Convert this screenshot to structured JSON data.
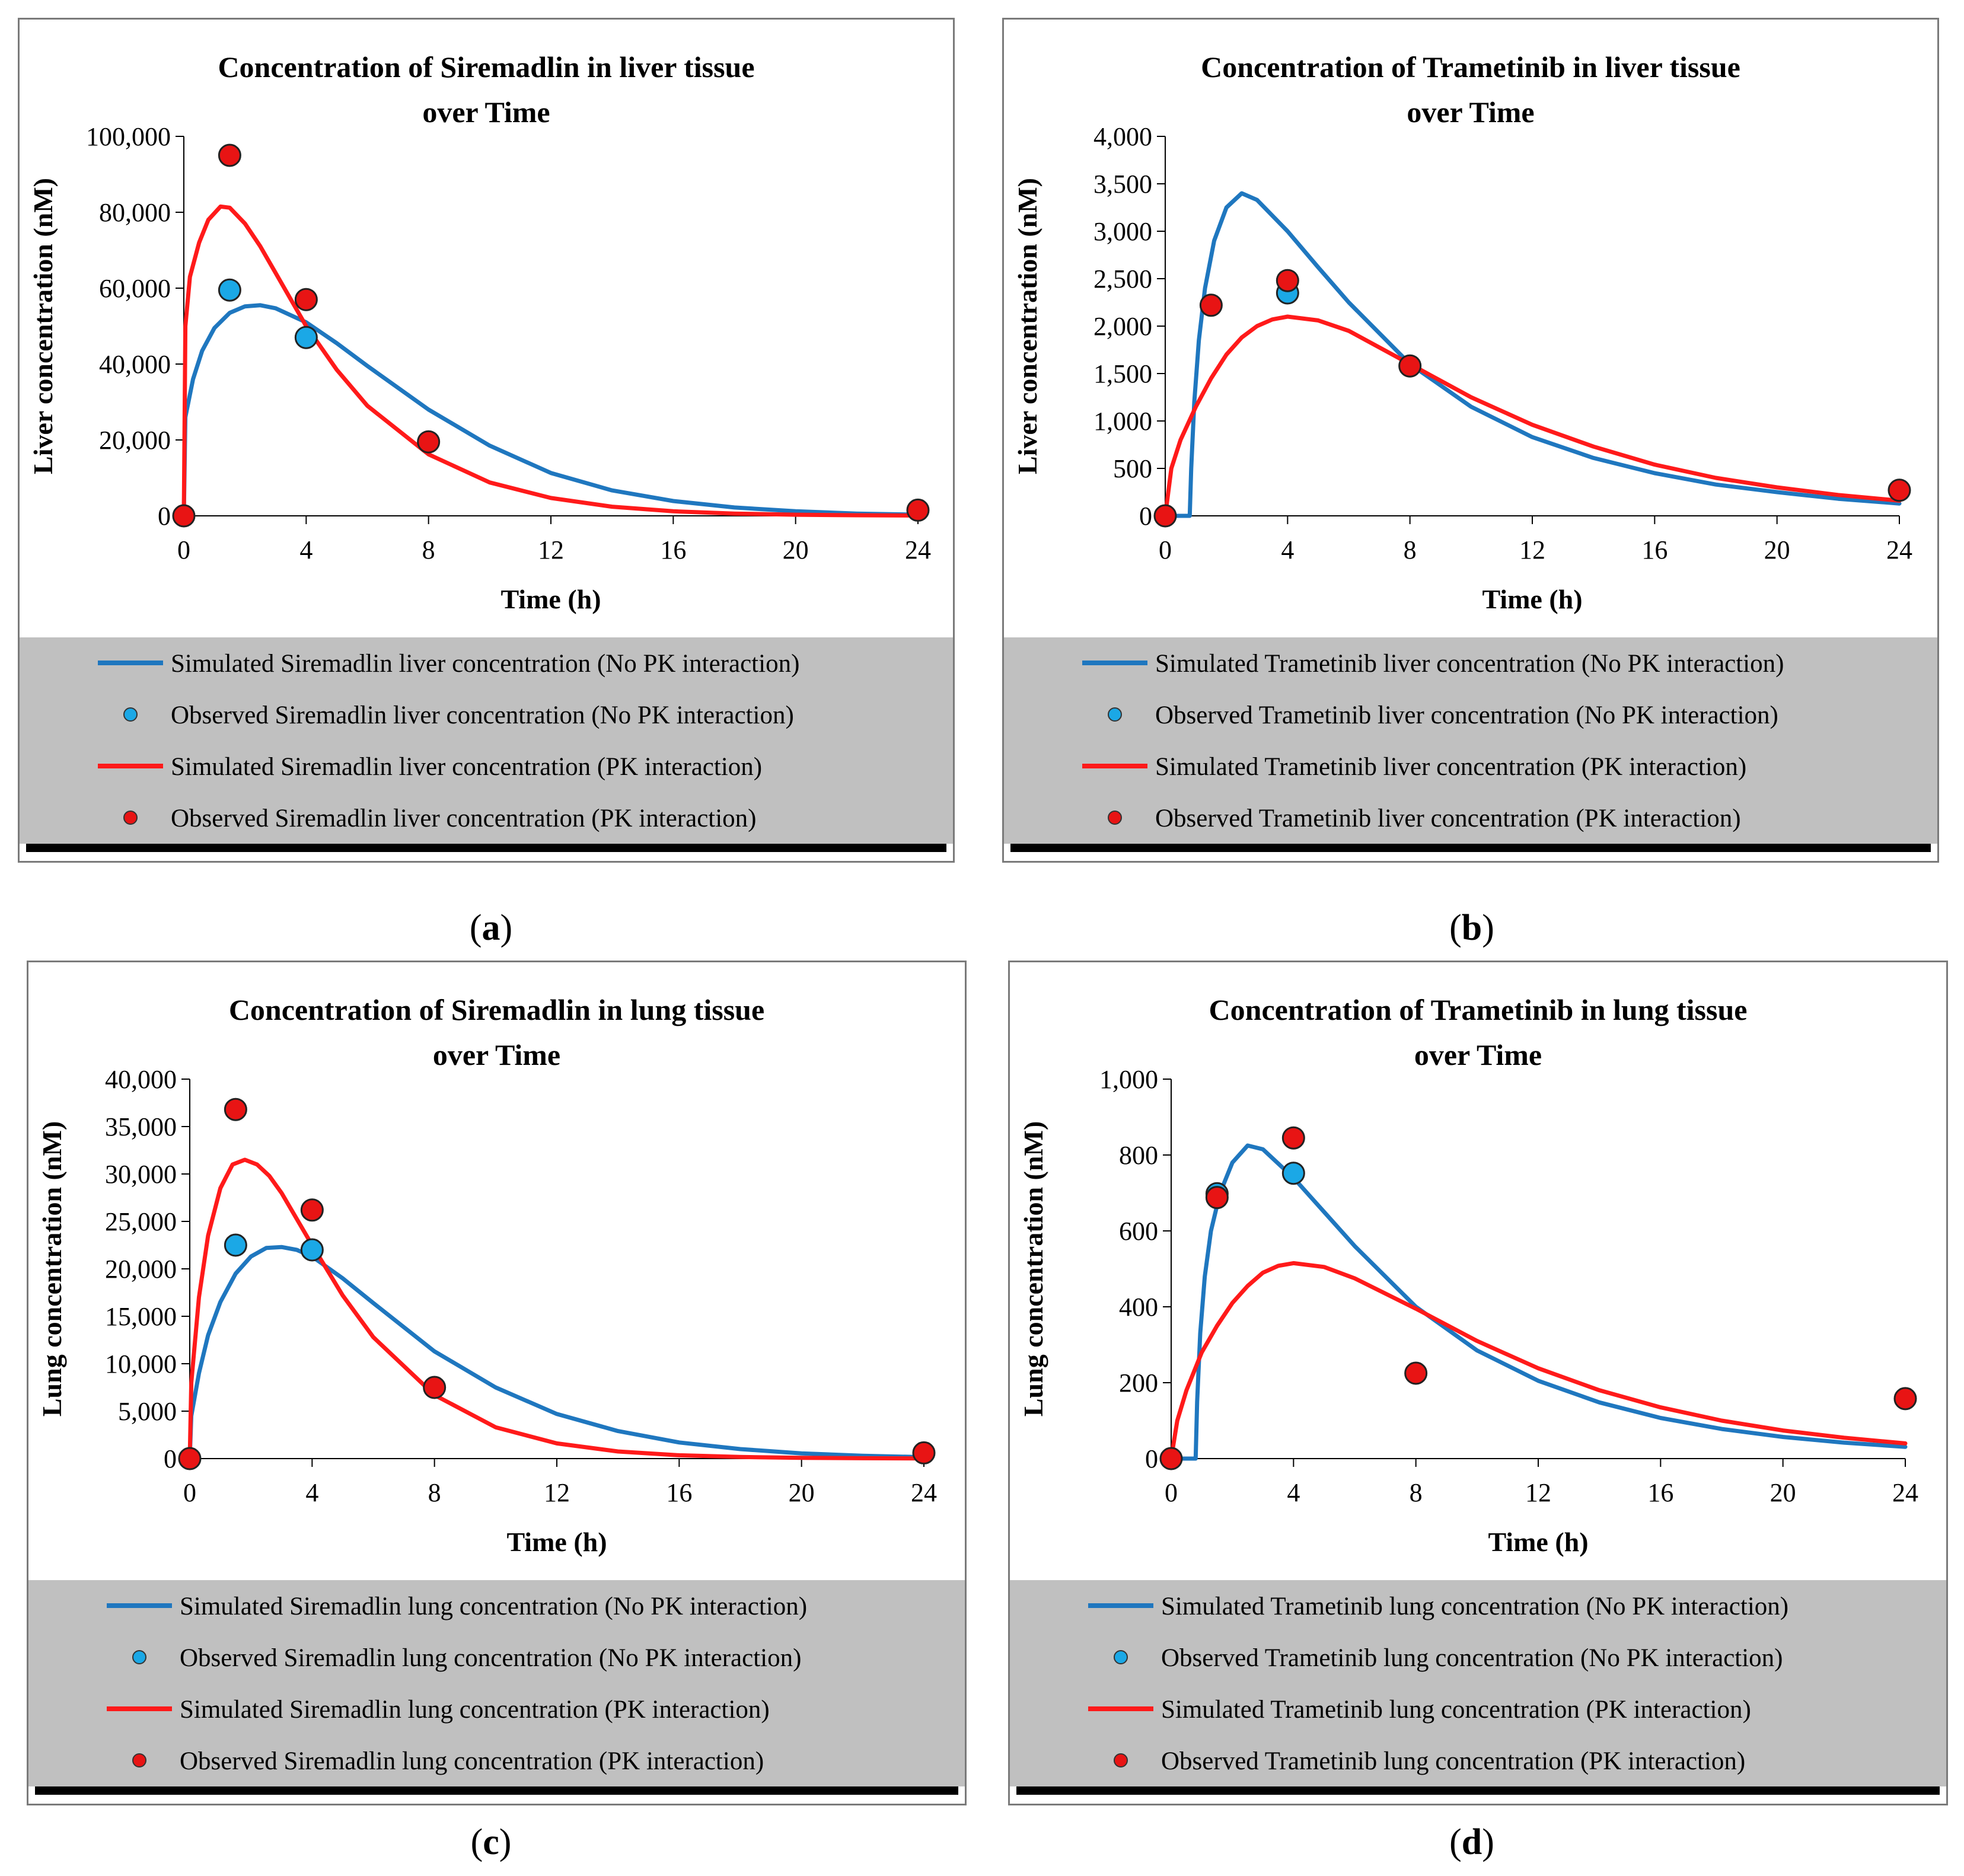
{
  "colors": {
    "no_pk": "#1f77bf",
    "pk": "#ff1a1a",
    "observed_no_pk_fill": "#1ba8e6",
    "observed_pk_fill": "#e81414",
    "legend_bg": "#c0c0c0"
  },
  "chart_data": [
    {
      "id": "a",
      "type": "line",
      "caption_letter": "a",
      "title_line1": "Concentration of Siremadlin in liver tissue",
      "title_line2": "over Time",
      "xlabel": "Time (h)",
      "ylabel": "Liver concentration (nM)",
      "xlim": [
        0,
        24
      ],
      "ylim": [
        0,
        100000
      ],
      "x_ticks": [
        0,
        4,
        8,
        12,
        16,
        20,
        24
      ],
      "x_tick_labels": [
        "0",
        "4",
        "8",
        "12",
        "16",
        "20",
        "24"
      ],
      "y_ticks": [
        0,
        20000,
        40000,
        60000,
        80000,
        100000
      ],
      "y_tick_labels": [
        "0",
        "20,000",
        "40,000",
        "60,000",
        "80,000",
        "100,000"
      ],
      "series": [
        {
          "name": "Simulated Siremadlin liver concentration (No PK interaction)",
          "kind": "line",
          "color": "#1f77bf",
          "x": [
            0,
            0.05,
            0.3,
            0.6,
            1,
            1.5,
            2,
            2.5,
            3,
            4,
            5,
            6,
            8,
            10,
            12,
            14,
            16,
            18,
            20,
            22,
            24
          ],
          "y": [
            0,
            26000,
            36000,
            43500,
            49500,
            53500,
            55200,
            55500,
            54700,
            51000,
            45500,
            39500,
            28000,
            18500,
            11300,
            6700,
            3900,
            2200,
            1200,
            600,
            300
          ]
        },
        {
          "name": "Observed Siremadlin liver concentration (No PK interaction)",
          "kind": "scatter",
          "color": "#1ba8e6",
          "x": [
            1.5,
            4
          ],
          "y": [
            59500,
            47000
          ]
        },
        {
          "name": "Simulated Siremadlin liver concentration (PK interaction)",
          "kind": "line",
          "color": "#ff1a1a",
          "x": [
            0,
            0.05,
            0.2,
            0.5,
            0.8,
            1.2,
            1.5,
            2,
            2.5,
            3,
            4,
            5,
            6,
            8,
            10,
            12,
            14,
            16,
            18,
            20,
            22,
            24
          ],
          "y": [
            0,
            50000,
            63000,
            72000,
            78000,
            81500,
            81200,
            77000,
            71000,
            64000,
            50000,
            38500,
            29000,
            16200,
            8800,
            4700,
            2400,
            1200,
            600,
            300,
            150,
            80
          ]
        },
        {
          "name": "Observed Siremadlin liver concentration (PK interaction)",
          "kind": "scatter",
          "color": "#e81414",
          "x": [
            0,
            1.5,
            4,
            8,
            24
          ],
          "y": [
            0,
            95000,
            57000,
            19500,
            1500
          ]
        }
      ]
    },
    {
      "id": "b",
      "type": "line",
      "caption_letter": "b",
      "title_line1": "Concentration of Trametinib in liver tissue",
      "title_line2": "over Time",
      "xlabel": "Time (h)",
      "ylabel": "Liver concentration (nM)",
      "xlim": [
        0,
        24
      ],
      "ylim": [
        0,
        4000
      ],
      "x_ticks": [
        0,
        4,
        8,
        12,
        16,
        20,
        24
      ],
      "x_tick_labels": [
        "0",
        "4",
        "8",
        "12",
        "16",
        "20",
        "24"
      ],
      "y_ticks": [
        0,
        500,
        1000,
        1500,
        2000,
        2500,
        3000,
        3500,
        4000
      ],
      "y_tick_labels": [
        "0",
        "500",
        "1,000",
        "1,500",
        "2,000",
        "2,500",
        "3,000",
        "3,500",
        "4,000"
      ],
      "series": [
        {
          "name": "Simulated Trametinib liver concentration (No PK interaction)",
          "kind": "line",
          "color": "#1f77bf",
          "x": [
            0,
            0.8,
            0.85,
            0.95,
            1.1,
            1.3,
            1.6,
            2,
            2.5,
            3,
            4,
            5,
            6,
            8,
            10,
            12,
            14,
            16,
            18,
            20,
            22,
            24
          ],
          "y": [
            0,
            0,
            500,
            1200,
            1850,
            2400,
            2900,
            3250,
            3400,
            3330,
            3000,
            2620,
            2250,
            1600,
            1150,
            830,
            610,
            450,
            330,
            250,
            180,
            130
          ]
        },
        {
          "name": "Observed Trametinib liver concentration (No PK interaction)",
          "kind": "scatter",
          "color": "#1ba8e6",
          "x": [
            4
          ],
          "y": [
            2350
          ]
        },
        {
          "name": "Simulated Trametinib liver concentration (PK interaction)",
          "kind": "line",
          "color": "#ff1a1a",
          "x": [
            0,
            0.2,
            0.5,
            1,
            1.5,
            2,
            2.5,
            3,
            3.5,
            4,
            5,
            6,
            8,
            10,
            12,
            14,
            16,
            18,
            20,
            22,
            24
          ],
          "y": [
            0,
            500,
            800,
            1150,
            1450,
            1700,
            1880,
            2000,
            2070,
            2100,
            2060,
            1950,
            1600,
            1250,
            960,
            730,
            540,
            400,
            300,
            220,
            160
          ]
        },
        {
          "name": "Observed Trametinib liver concentration (PK interaction)",
          "kind": "scatter",
          "color": "#e81414",
          "x": [
            0,
            1.5,
            4,
            8,
            24
          ],
          "y": [
            0,
            2220,
            2480,
            1580,
            270
          ]
        }
      ]
    },
    {
      "id": "c",
      "type": "line",
      "caption_letter": "c",
      "title_line1": "Concentration of Siremadlin in lung tissue",
      "title_line2": "over Time",
      "xlabel": "Time (h)",
      "ylabel": "Lung concentration (nM)",
      "xlim": [
        0,
        24
      ],
      "ylim": [
        0,
        40000
      ],
      "x_ticks": [
        0,
        4,
        8,
        12,
        16,
        20,
        24
      ],
      "x_tick_labels": [
        "0",
        "4",
        "8",
        "12",
        "16",
        "20",
        "24"
      ],
      "y_ticks": [
        0,
        5000,
        10000,
        15000,
        20000,
        25000,
        30000,
        35000,
        40000
      ],
      "y_tick_labels": [
        "0",
        "5,000",
        "10,000",
        "15,000",
        "20,000",
        "25,000",
        "30,000",
        "35,000",
        "40,000"
      ],
      "series": [
        {
          "name": "Simulated Siremadlin lung concentration (No PK interaction)",
          "kind": "line",
          "color": "#1f77bf",
          "x": [
            0,
            0.05,
            0.3,
            0.6,
            1,
            1.5,
            2,
            2.5,
            3,
            3.5,
            4,
            5,
            6,
            8,
            10,
            12,
            14,
            16,
            18,
            20,
            22,
            24
          ],
          "y": [
            0,
            4500,
            9000,
            13000,
            16500,
            19500,
            21300,
            22200,
            22300,
            22000,
            21300,
            19000,
            16400,
            11300,
            7500,
            4700,
            2900,
            1700,
            1000,
            550,
            300,
            150
          ]
        },
        {
          "name": "Observed Siremadlin lung concentration (No PK interaction)",
          "kind": "scatter",
          "color": "#1ba8e6",
          "x": [
            1.5,
            4
          ],
          "y": [
            22500,
            22000
          ]
        },
        {
          "name": "Simulated Siremadlin lung concentration (PK interaction)",
          "kind": "line",
          "color": "#ff1a1a",
          "x": [
            0,
            0.05,
            0.3,
            0.6,
            1,
            1.4,
            1.8,
            2.2,
            2.6,
            3,
            4,
            5,
            6,
            8,
            10,
            12,
            14,
            16,
            18,
            20,
            22,
            24
          ],
          "y": [
            0,
            8000,
            17000,
            23500,
            28500,
            31000,
            31500,
            31000,
            29800,
            28000,
            22500,
            17200,
            12800,
            6700,
            3300,
            1600,
            750,
            350,
            170,
            80,
            40,
            20
          ]
        },
        {
          "name": "Observed Siremadlin lung concentration (PK interaction)",
          "kind": "scatter",
          "color": "#e81414",
          "x": [
            0,
            1.5,
            4,
            8,
            24
          ],
          "y": [
            0,
            36800,
            26200,
            7500,
            600
          ]
        }
      ]
    },
    {
      "id": "d",
      "type": "line",
      "caption_letter": "d",
      "title_line1": "Concentration of Trametinib in lung tissue",
      "title_line2": "over Time",
      "xlabel": "Time (h)",
      "ylabel": "Lung concentration (nM)",
      "xlim": [
        0,
        24
      ],
      "ylim": [
        0,
        1000
      ],
      "x_ticks": [
        0,
        4,
        8,
        12,
        16,
        20,
        24
      ],
      "x_tick_labels": [
        "0",
        "4",
        "8",
        "12",
        "16",
        "20",
        "24"
      ],
      "y_ticks": [
        0,
        200,
        400,
        600,
        800,
        1000
      ],
      "y_tick_labels": [
        "0",
        "200",
        "400",
        "600",
        "800",
        "1,000"
      ],
      "series": [
        {
          "name": "Simulated Trametinib lung concentration (No PK interaction)",
          "kind": "line",
          "color": "#1f77bf",
          "x": [
            0,
            0.8,
            0.85,
            0.95,
            1.1,
            1.3,
            1.6,
            2,
            2.5,
            3,
            4,
            5,
            6,
            8,
            10,
            12,
            14,
            16,
            18,
            20,
            22,
            24
          ],
          "y": [
            0,
            0,
            150,
            330,
            480,
            600,
            700,
            780,
            825,
            815,
            740,
            650,
            560,
            400,
            285,
            205,
            148,
            107,
            78,
            57,
            42,
            31
          ]
        },
        {
          "name": "Observed Trametinib lung concentration (No PK interaction)",
          "kind": "scatter",
          "color": "#1ba8e6",
          "x": [
            1.5,
            4
          ],
          "y": [
            698,
            752
          ]
        },
        {
          "name": "Simulated Trametinib lung concentration (PK interaction)",
          "kind": "line",
          "color": "#ff1a1a",
          "x": [
            0,
            0.2,
            0.5,
            1,
            1.5,
            2,
            2.5,
            3,
            3.5,
            4,
            5,
            6,
            8,
            10,
            12,
            14,
            16,
            18,
            20,
            22,
            24
          ],
          "y": [
            0,
            100,
            180,
            280,
            350,
            410,
            455,
            490,
            508,
            515,
            505,
            475,
            395,
            310,
            238,
            180,
            135,
            100,
            74,
            55,
            40
          ]
        },
        {
          "name": "Observed Trametinib lung concentration (PK interaction)",
          "kind": "scatter",
          "color": "#e81414",
          "x": [
            0,
            1.5,
            4,
            8,
            24
          ],
          "y": [
            0,
            688,
            845,
            225,
            158
          ]
        }
      ]
    }
  ]
}
